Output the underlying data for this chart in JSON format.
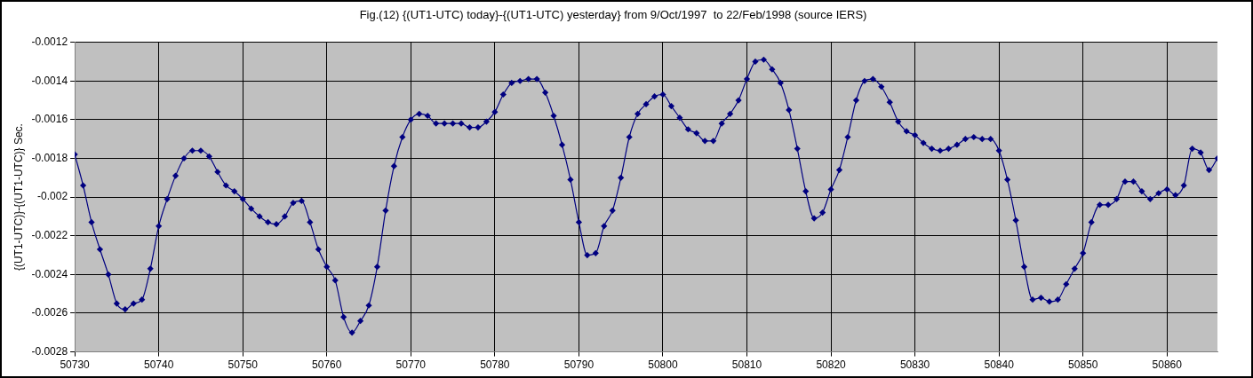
{
  "chart_data": {
    "type": "line",
    "title": "Fig.(12) {(UT1-UTC) today}-{(UT1-UTC) yesterday} from 9/Oct/1997  to 22/Feb/1998 (source IERS)",
    "ylabel": "{(UT1-UTC)}-{(UT1-UTC)} Sec.",
    "x": [
      50730,
      50731,
      50732,
      50733,
      50734,
      50735,
      50736,
      50737,
      50738,
      50739,
      50740,
      50741,
      50742,
      50743,
      50744,
      50745,
      50746,
      50747,
      50748,
      50749,
      50750,
      50751,
      50752,
      50753,
      50754,
      50755,
      50756,
      50757,
      50758,
      50759,
      50760,
      50761,
      50762,
      50763,
      50764,
      50765,
      50766,
      50767,
      50768,
      50769,
      50770,
      50771,
      50772,
      50773,
      50774,
      50775,
      50776,
      50777,
      50778,
      50779,
      50780,
      50781,
      50782,
      50783,
      50784,
      50785,
      50786,
      50787,
      50788,
      50789,
      50790,
      50791,
      50792,
      50793,
      50794,
      50795,
      50796,
      50797,
      50798,
      50799,
      50800,
      50801,
      50802,
      50803,
      50804,
      50805,
      50806,
      50807,
      50808,
      50809,
      50810,
      50811,
      50812,
      50813,
      50814,
      50815,
      50816,
      50817,
      50818,
      50819,
      50820,
      50821,
      50822,
      50823,
      50824,
      50825,
      50826,
      50827,
      50828,
      50829,
      50830,
      50831,
      50832,
      50833,
      50834,
      50835,
      50836,
      50837,
      50838,
      50839,
      50840,
      50841,
      50842,
      50843,
      50844,
      50845,
      50846,
      50847,
      50848,
      50849,
      50850,
      50851,
      50852,
      50853,
      50854,
      50855,
      50856,
      50857,
      50858,
      50859,
      50860,
      50861,
      50862,
      50863,
      50864,
      50865,
      50866
    ],
    "series": [
      {
        "color": "#000080",
        "values": [
          -0.00178,
          -0.00194,
          -0.00213,
          -0.00227,
          -0.0024,
          -0.00255,
          -0.00258,
          -0.00255,
          -0.00253,
          -0.00237,
          -0.00215,
          -0.00201,
          -0.00189,
          -0.0018,
          -0.00176,
          -0.00176,
          -0.00179,
          -0.00187,
          -0.00194,
          -0.00197,
          -0.00201,
          -0.00206,
          -0.0021,
          -0.00213,
          -0.00214,
          -0.0021,
          -0.00203,
          -0.00202,
          -0.00213,
          -0.00227,
          -0.00236,
          -0.00243,
          -0.00262,
          -0.0027,
          -0.00264,
          -0.00256,
          -0.00236,
          -0.00207,
          -0.00184,
          -0.00169,
          -0.0016,
          -0.00157,
          -0.00158,
          -0.00162,
          -0.00162,
          -0.00162,
          -0.00162,
          -0.00164,
          -0.00164,
          -0.00161,
          -0.00156,
          -0.00147,
          -0.00141,
          -0.0014,
          -0.00139,
          -0.00139,
          -0.00146,
          -0.00158,
          -0.00173,
          -0.00191,
          -0.00213,
          -0.0023,
          -0.00229,
          -0.00215,
          -0.00207,
          -0.0019,
          -0.00169,
          -0.00157,
          -0.00152,
          -0.00148,
          -0.00147,
          -0.00153,
          -0.00159,
          -0.00165,
          -0.00167,
          -0.00171,
          -0.00171,
          -0.00162,
          -0.00157,
          -0.0015,
          -0.00139,
          -0.0013,
          -0.00129,
          -0.00134,
          -0.00141,
          -0.00155,
          -0.00175,
          -0.00197,
          -0.00211,
          -0.00208,
          -0.00196,
          -0.00186,
          -0.00169,
          -0.0015,
          -0.0014,
          -0.00139,
          -0.00143,
          -0.00151,
          -0.00161,
          -0.00166,
          -0.00168,
          -0.00172,
          -0.00175,
          -0.00176,
          -0.00175,
          -0.00173,
          -0.0017,
          -0.00169,
          -0.0017,
          -0.0017,
          -0.00176,
          -0.00191,
          -0.00212,
          -0.00236,
          -0.00253,
          -0.00252,
          -0.00254,
          -0.00253,
          -0.00245,
          -0.00237,
          -0.00229,
          -0.00213,
          -0.00204,
          -0.00204,
          -0.00201,
          -0.00192,
          -0.00192,
          -0.00197,
          -0.00201,
          -0.00198,
          -0.00196,
          -0.00199,
          -0.00194,
          -0.00175,
          -0.00177,
          -0.00186,
          -0.0018
        ]
      }
    ],
    "xlim": [
      50730,
      50866
    ],
    "xticks": [
      50730,
      50740,
      50750,
      50760,
      50770,
      50780,
      50790,
      50800,
      50810,
      50820,
      50830,
      50840,
      50850,
      50860
    ],
    "ylim": [
      -0.0028,
      -0.0012
    ],
    "yticks": [
      -0.0012,
      -0.0014,
      -0.0016,
      -0.0018,
      -0.002,
      -0.0022,
      -0.0024,
      -0.0026,
      -0.0028
    ],
    "grid": true,
    "legend": false,
    "marker": "diamond",
    "line_style": "solid"
  }
}
